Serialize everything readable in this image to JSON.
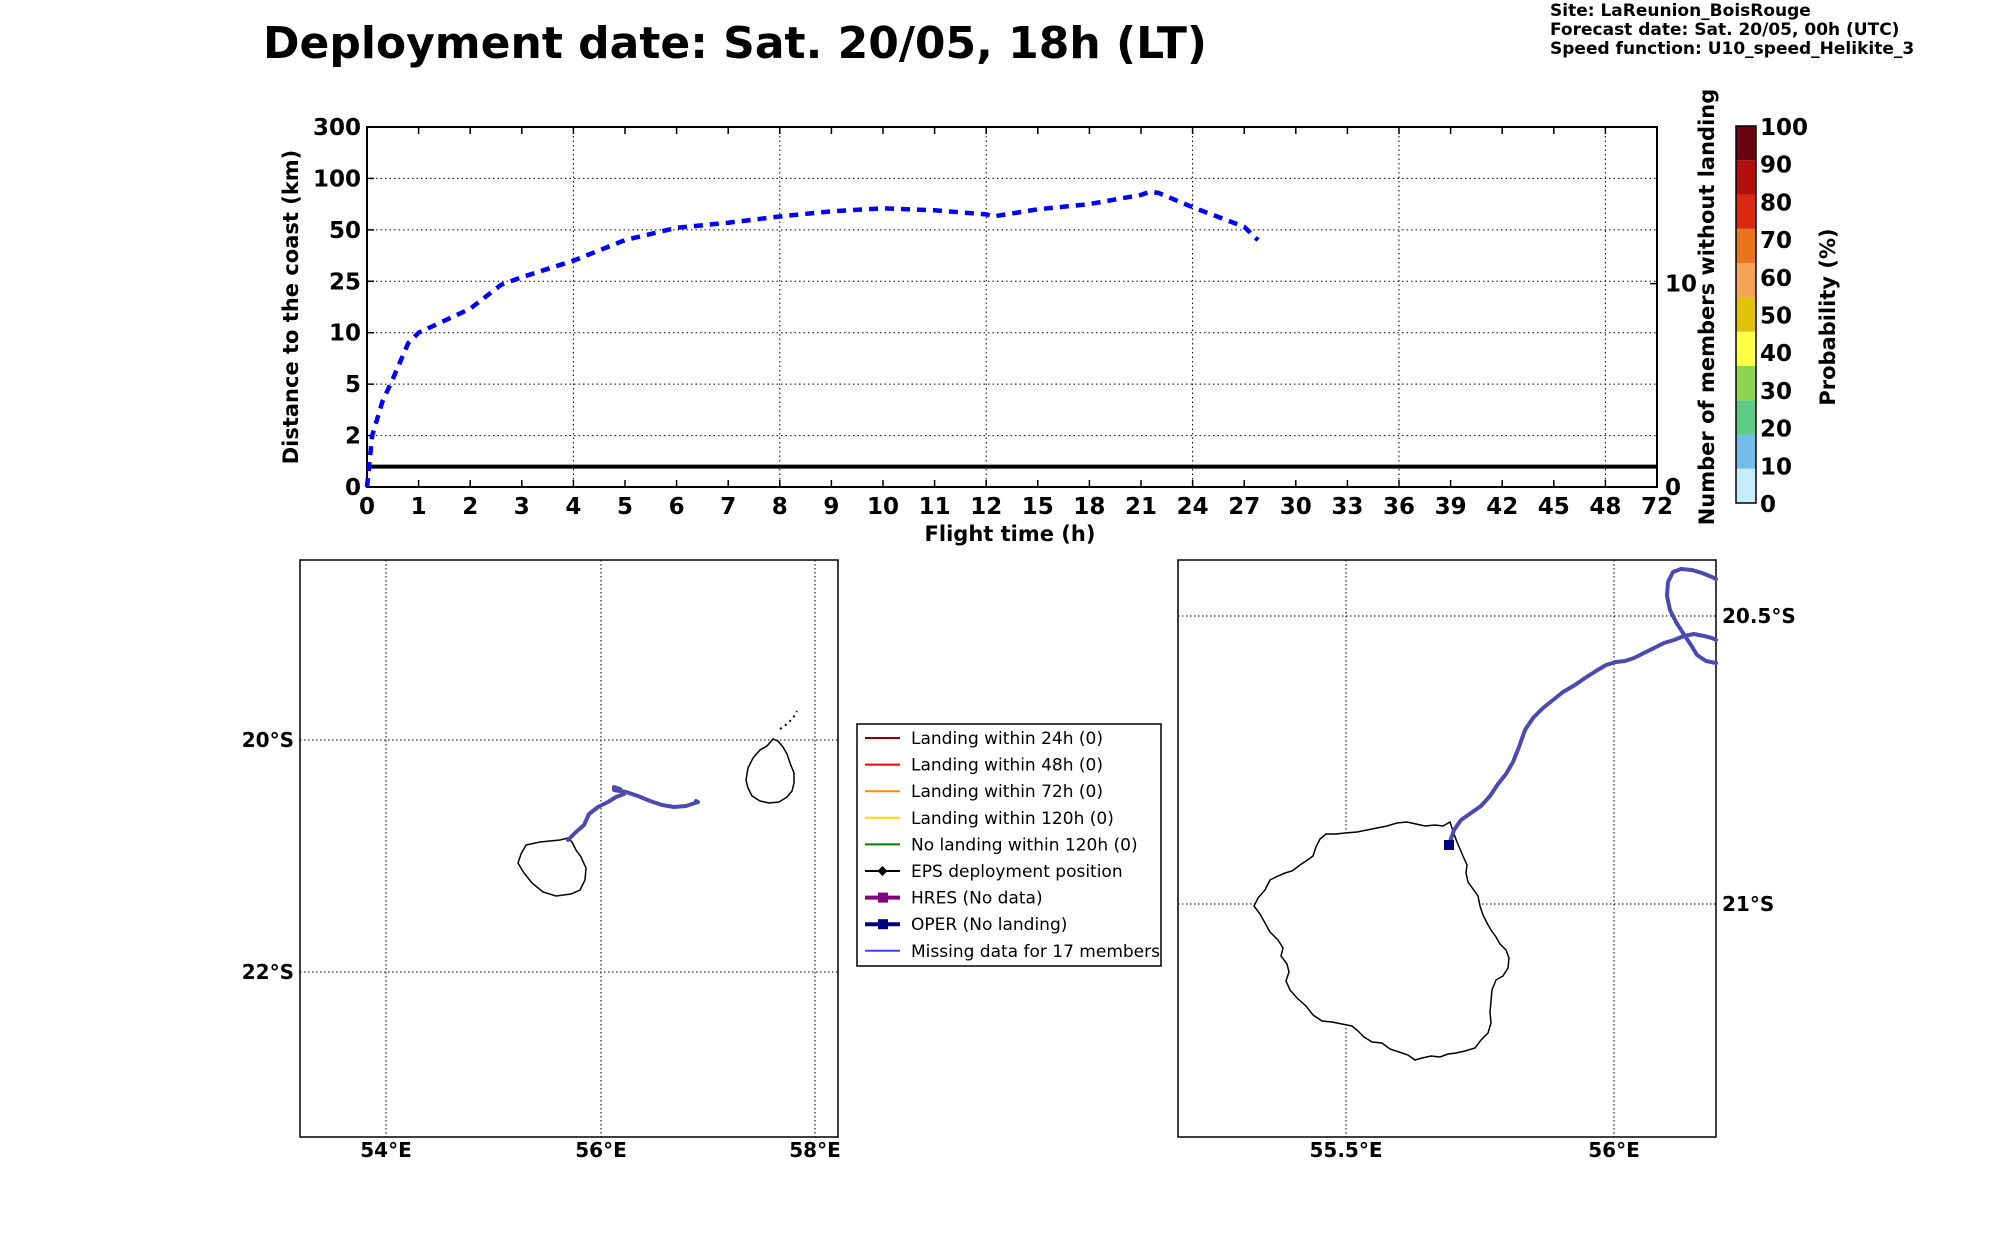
{
  "title": "Deployment date: Sat. 20/05, 18h (LT)",
  "info": {
    "site": "Site: LaReunion_BoisRouge",
    "forecast_date": "Forecast date: Sat. 20/05, 00h (UTC)",
    "speed_function": "Speed function: U10_speed_Helikite_3"
  },
  "chart_data": [
    {
      "type": "line",
      "title": "",
      "xlabel": "Flight time (h)",
      "ylabel": "Distance to the coast (km)",
      "ylabel_right": "Number of members without landing",
      "x_ticks": [
        "0",
        "1",
        "2",
        "3",
        "4",
        "5",
        "6",
        "7",
        "8",
        "9",
        "10",
        "11",
        "12",
        "15",
        "18",
        "21",
        "24",
        "27",
        "30",
        "33",
        "36",
        "39",
        "42",
        "45",
        "48",
        "72"
      ],
      "y_ticks": [
        "0",
        "2",
        "5",
        "10",
        "25",
        "50",
        "100",
        "300"
      ],
      "y_right_ticks": [
        "0",
        "10"
      ],
      "grid": true,
      "series": [
        {
          "name": "",
          "style": "dashed",
          "color": "#0000ff",
          "x": [
            "0",
            "0.1",
            "0.3",
            "0.5",
            "0.8",
            "1",
            "2",
            "2.6",
            "3",
            "4",
            "5",
            "6",
            "7",
            "8",
            "9",
            "10",
            "11",
            "12",
            "12.4",
            "15",
            "18",
            "21",
            "21.5",
            "22",
            "24",
            "27",
            "27.8"
          ],
          "y": [
            0,
            2,
            4,
            5.5,
            9,
            10,
            17,
            24,
            27,
            35,
            45,
            52,
            57,
            63,
            68,
            71,
            69,
            65,
            63,
            70,
            75,
            84,
            87,
            86,
            72,
            53,
            45
          ]
        },
        {
          "name": "",
          "style": "solid",
          "color": "#000000",
          "x_range": [
            "0",
            "72"
          ],
          "y_right_value": 1
        }
      ]
    },
    {
      "type": "colorbar",
      "label": "Probability (%)",
      "ticks": [
        "0",
        "10",
        "20",
        "30",
        "40",
        "50",
        "60",
        "70",
        "80",
        "90",
        "100"
      ],
      "colors": [
        "#c6ecfd",
        "#72bde8",
        "#5ecc86",
        "#8fd34e",
        "#ffff44",
        "#e2c20a",
        "#f5a354",
        "#e8741c",
        "#d92a10",
        "#b30f0f",
        "#6a0411"
      ]
    }
  ],
  "legend": {
    "items": [
      {
        "label": "Landing within 24h (0)",
        "color": "#8b0000",
        "marker": "none",
        "width": 2
      },
      {
        "label": "Landing within 48h (0)",
        "color": "#ff0000",
        "marker": "none",
        "width": 2
      },
      {
        "label": "Landing within 72h (0)",
        "color": "#ff8c00",
        "marker": "none",
        "width": 2
      },
      {
        "label": "Landing within 120h (0)",
        "color": "#ffd700",
        "marker": "none",
        "width": 2
      },
      {
        "label": "No landing within 120h (0)",
        "color": "#008000",
        "marker": "none",
        "width": 2
      },
      {
        "label": "EPS deployment position",
        "color": "#000000",
        "marker": "diamond",
        "width": 2
      },
      {
        "label": "HRES (No data)",
        "color": "#800080",
        "marker": "square",
        "width": 4
      },
      {
        "label": "OPER (No landing)",
        "color": "#000080",
        "marker": "square",
        "width": 4
      },
      {
        "label": "Missing data for 17 members",
        "color": "#4040ff",
        "marker": "none",
        "width": 2
      }
    ]
  },
  "map_left": {
    "x_ticks": [
      "54°E",
      "56°E",
      "58°E"
    ],
    "y_ticks": [
      "20°S",
      "22°S"
    ],
    "track_color": "#4a4ab0"
  },
  "map_right": {
    "x_ticks": [
      "55.5°E",
      "56°E"
    ],
    "y_ticks": [
      "20.5°S",
      "21°S"
    ],
    "track_color": "#4a4ab0",
    "oper_marker_color": "#000080"
  }
}
